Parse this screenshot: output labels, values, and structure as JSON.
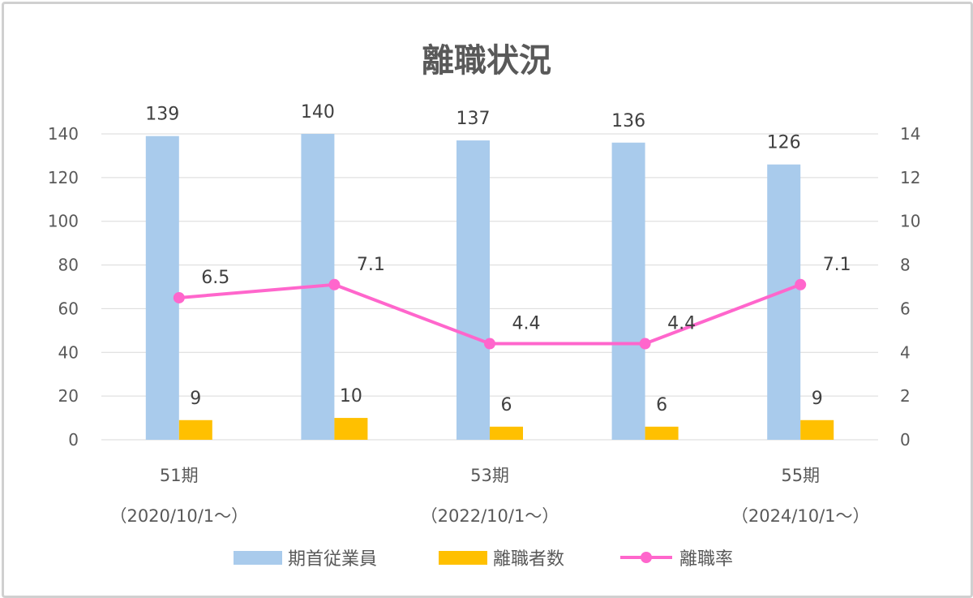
{
  "chart_data": {
    "type": "bar",
    "title": "離職状況",
    "categories": [
      [
        "51期",
        "（2020/10/1～）"
      ],
      [
        "",
        ""
      ],
      [
        "53期",
        "（2022/10/1～）"
      ],
      [
        "",
        ""
      ],
      [
        "55期",
        "（2024/10/1～）"
      ]
    ],
    "left_axis": {
      "min": 0,
      "max": 140,
      "step": 20,
      "ticks": [
        "0",
        "20",
        "40",
        "60",
        "80",
        "100",
        "120",
        "140"
      ]
    },
    "right_axis": {
      "min": 0,
      "max": 14,
      "step": 2,
      "ticks": [
        "0",
        "2",
        "4",
        "6",
        "8",
        "10",
        "12",
        "14"
      ]
    },
    "grid": true,
    "legend_position": "bottom",
    "series": [
      {
        "name": "期首従業員",
        "kind": "bar",
        "axis": "left",
        "color": "#A9CBEC",
        "values": [
          139,
          140,
          137,
          136,
          126
        ],
        "labels": [
          "139",
          "140",
          "137",
          "136",
          "126"
        ]
      },
      {
        "name": "離職者数",
        "kind": "bar",
        "axis": "left",
        "color": "#FFC000",
        "values": [
          9,
          10,
          6,
          6,
          9
        ],
        "labels": [
          "9",
          "10",
          "6",
          "6",
          "9"
        ]
      },
      {
        "name": "離職率",
        "kind": "line",
        "axis": "right",
        "color": "#FF66CC",
        "values": [
          6.5,
          7.1,
          4.4,
          4.4,
          7.1
        ],
        "labels": [
          "6.5",
          "7.1",
          "4.4",
          "4.4",
          "7.1"
        ]
      }
    ]
  }
}
